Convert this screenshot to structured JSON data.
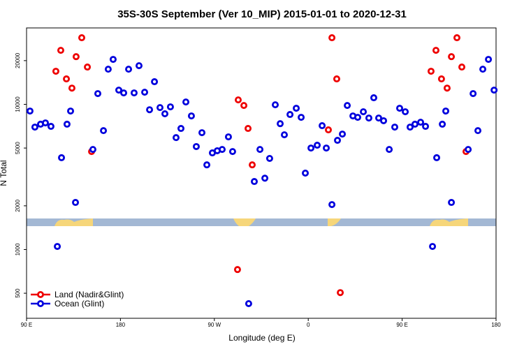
{
  "chart_data": {
    "type": "scatter",
    "title": "35S-30S September (Ver 10_MIP)   2015-01-01 to 2020-12-31",
    "x_label": "Longitude (deg E)",
    "y_label": "N Total",
    "xlim": [
      90,
      540
    ],
    "ylim": [
      336,
      33600
    ],
    "ylog": true,
    "xticks": [
      {
        "value": 90,
        "label": "90 E"
      },
      {
        "value": 180,
        "label": "180"
      },
      {
        "value": 270,
        "label": "90 W"
      },
      {
        "value": 360,
        "label": "0"
      },
      {
        "value": 450,
        "label": "90 E"
      },
      {
        "value": 540,
        "label": "180"
      }
    ],
    "yticks": [
      500,
      1000,
      2000,
      5000,
      10000,
      20000
    ],
    "legend": "bottom-left",
    "series": [
      {
        "name": "Land (Nadir&Glint)",
        "color": "#ee0000",
        "x": [
          118.1,
          122.8,
          128.2,
          133.5,
          137.5,
          142.9,
          148.3,
          152.3,
          292.2,
          292.9,
          298.3,
          302.3,
          306.3,
          379.3,
          382.7,
          387.3,
          390.7,
          477.7,
          482.4,
          487.7,
          493.1,
          497.2,
          502.5,
          507.2,
          511.2
        ],
        "values": [
          16900,
          23550,
          14970,
          12940,
          21300,
          28760,
          18070,
          4730,
          728,
          10730,
          9820,
          6820,
          3830,
          6670,
          28760,
          14970,
          505,
          16900,
          23550,
          14970,
          12940,
          21300,
          28760,
          18070,
          4730
        ]
      },
      {
        "name": "Ocean (Glint)",
        "color": "#0000dd",
        "x": [
          93.3,
          98.0,
          103.4,
          108.1,
          113.4,
          119.5,
          123.5,
          128.8,
          132.2,
          136.9,
          153.6,
          158.3,
          163.7,
          168.3,
          173.0,
          178.4,
          183.1,
          187.8,
          193.1,
          197.8,
          203.2,
          207.9,
          212.6,
          217.9,
          222.6,
          227.9,
          233.3,
          238.0,
          242.7,
          248.0,
          252.7,
          258.1,
          262.8,
          268.1,
          272.8,
          277.5,
          283.5,
          287.5,
          302.9,
          308.3,
          313.7,
          318.4,
          323.0,
          328.4,
          333.1,
          337.1,
          342.5,
          348.5,
          353.2,
          357.2,
          362.6,
          368.6,
          373.3,
          377.3,
          382.7,
          388.0,
          392.7,
          397.4,
          402.8,
          407.4,
          412.8,
          418.1,
          422.8,
          427.5,
          432.2,
          437.6,
          442.9,
          447.6,
          453.0,
          457.6,
          462.3,
          467.7,
          472.4,
          479.1,
          483.1,
          488.5,
          491.8,
          497.2,
          513.3,
          518.0,
          522.6,
          527.3,
          532.7,
          538.1
        ],
        "values": [
          8990,
          6970,
          7300,
          7450,
          7050,
          1050,
          4290,
          7300,
          8990,
          2110,
          4890,
          11860,
          6590,
          17460,
          20400,
          12530,
          11990,
          17460,
          11990,
          18460,
          12120,
          9180,
          14320,
          9500,
          8610,
          9610,
          5900,
          6820,
          10380,
          8320,
          5120,
          6380,
          3830,
          4630,
          4790,
          4890,
          5970,
          4730,
          424,
          2940,
          4890,
          3100,
          4240,
          9930,
          7360,
          6170,
          8510,
          9400,
          8140,
          3360,
          5000,
          5230,
          7130,
          5000,
          2040,
          5650,
          6240,
          9820,
          8320,
          8140,
          8890,
          8050,
          11100,
          8050,
          7710,
          4890,
          6970,
          9400,
          8890,
          6970,
          7300,
          7530,
          7050,
          1050,
          4290,
          7300,
          8990,
          2110,
          4890,
          11860,
          6590,
          17460,
          20400,
          12530
        ]
      }
    ]
  }
}
